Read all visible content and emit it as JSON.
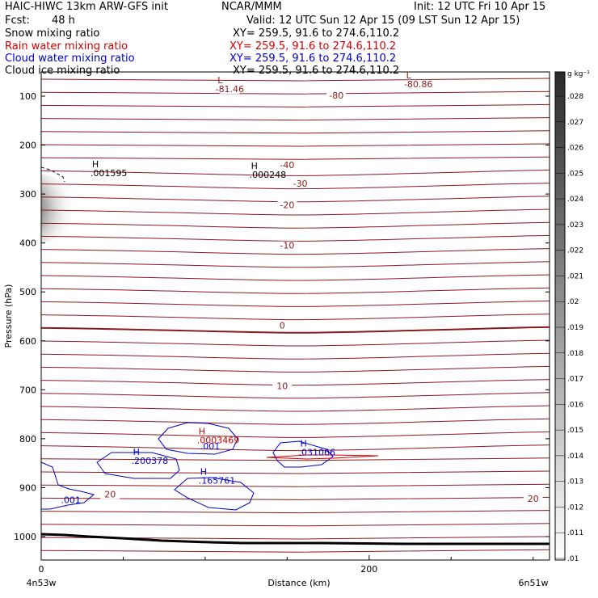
{
  "header": {
    "model": "HAIC-HIWC 13km ARW-GFS init",
    "org": "NCAR/MMM",
    "init": "Init: 12 UTC Fri 10 Apr 15",
    "fcst_label": "Fcst:",
    "fcst_value": "48 h",
    "valid": "Valid: 12 UTC Sun 12 Apr 15 (09 LST Sun 12 Apr 15)",
    "fields": [
      {
        "name": "Snow mixing ratio",
        "xy": "XY= 259.5, 91.6 to 274.6,110.2",
        "color": "#000000"
      },
      {
        "name": "Rain water mixing ratio",
        "xy": "XY= 259.5, 91.6 to 274.6,110.2",
        "color": "#d40000"
      },
      {
        "name": "Cloud water mixing ratio",
        "xy": "XY= 259.5, 91.6 to 274.6,110.2",
        "color": "#0000cc"
      },
      {
        "name": "Cloud ice mixing ratio",
        "xy": "XY= 259.5, 91.6 to 274.6,110.2",
        "color": "#000000"
      }
    ]
  },
  "chart_data": {
    "type": "cross-section",
    "xlabel": "Distance (km)",
    "ylabel": "Pressure (hPa)",
    "x_ticks": [
      0,
      200
    ],
    "x_range": [
      0,
      310
    ],
    "y_ticks": [
      100,
      200,
      300,
      400,
      500,
      600,
      700,
      800,
      900,
      1000
    ],
    "y_range": [
      40,
      1040
    ],
    "endpoint_labels": {
      "left": "4n53w",
      "right": "6n51w"
    },
    "colorbar": {
      "unit": "g kg⁻¹",
      "levels": [
        ".028",
        ".027",
        ".026",
        ".025",
        ".024",
        ".023",
        ".022",
        ".021",
        ".02",
        ".019",
        ".018",
        ".017",
        ".016",
        ".015",
        ".014",
        ".013",
        ".012",
        ".011",
        ".01"
      ]
    },
    "temperature_labels": [
      {
        "text": "-81.46",
        "x": 115,
        "p": 90,
        "kind": "minimum"
      },
      {
        "text": "-80.86",
        "x": 230,
        "p": 80,
        "kind": "minimum"
      },
      {
        "text": "-80",
        "x": 180,
        "p": 103
      },
      {
        "text": "-40",
        "x": 150,
        "p": 245
      },
      {
        "text": "-30",
        "x": 158,
        "p": 283
      },
      {
        "text": "-20",
        "x": 150,
        "p": 327
      },
      {
        "text": "-10",
        "x": 150,
        "p": 410
      },
      {
        "text": "0",
        "x": 147,
        "p": 573
      },
      {
        "text": "10",
        "x": 147,
        "p": 697
      },
      {
        "text": "20",
        "x": 42,
        "p": 918
      },
      {
        "text": "20",
        "x": 300,
        "p": 927
      }
    ],
    "maxima_labels": [
      {
        "text": ".001595",
        "x": 30,
        "p": 262,
        "color": "#000000"
      },
      {
        "text": ".000248",
        "x": 127,
        "p": 265,
        "color": "#000000"
      },
      {
        "text": ".0003469",
        "x": 95,
        "p": 808,
        "color": "#d40000"
      },
      {
        "text": ".001",
        "x": 97,
        "p": 820,
        "color": "#0000cc"
      },
      {
        "text": ".031066",
        "x": 157,
        "p": 832,
        "color": "#0000cc"
      },
      {
        "text": ".200378",
        "x": 55,
        "p": 850,
        "color": "#0000cc"
      },
      {
        "text": ".165761",
        "x": 96,
        "p": 890,
        "color": "#0000cc"
      },
      {
        "text": ".001",
        "x": 12,
        "p": 930,
        "color": "#0000cc"
      }
    ],
    "colors": {
      "temperature": "#8b1a1a",
      "terrain": "#000000",
      "cloud": "#0000cc",
      "rain": "#d40000"
    }
  }
}
